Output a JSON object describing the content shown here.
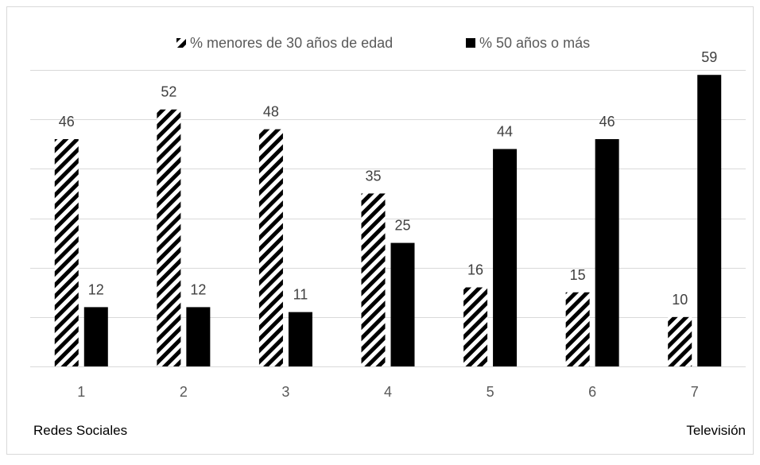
{
  "chart_data": {
    "type": "bar",
    "categories": [
      "1",
      "2",
      "3",
      "4",
      "5",
      "6",
      "7"
    ],
    "series": [
      {
        "name": "% menores de 30 años de edad",
        "values": [
          46,
          52,
          48,
          35,
          16,
          15,
          10
        ],
        "pattern": "diagonal-hatch",
        "color": "#000000"
      },
      {
        "name": "% 50 años o más",
        "values": [
          12,
          12,
          11,
          25,
          44,
          46,
          59
        ],
        "pattern": "solid",
        "color": "#000000"
      }
    ],
    "ylim": [
      0,
      60
    ],
    "grid": true,
    "legend_position": "top-center",
    "x_annotations": {
      "left": "Redes Sociales",
      "right": "Televisión"
    }
  }
}
